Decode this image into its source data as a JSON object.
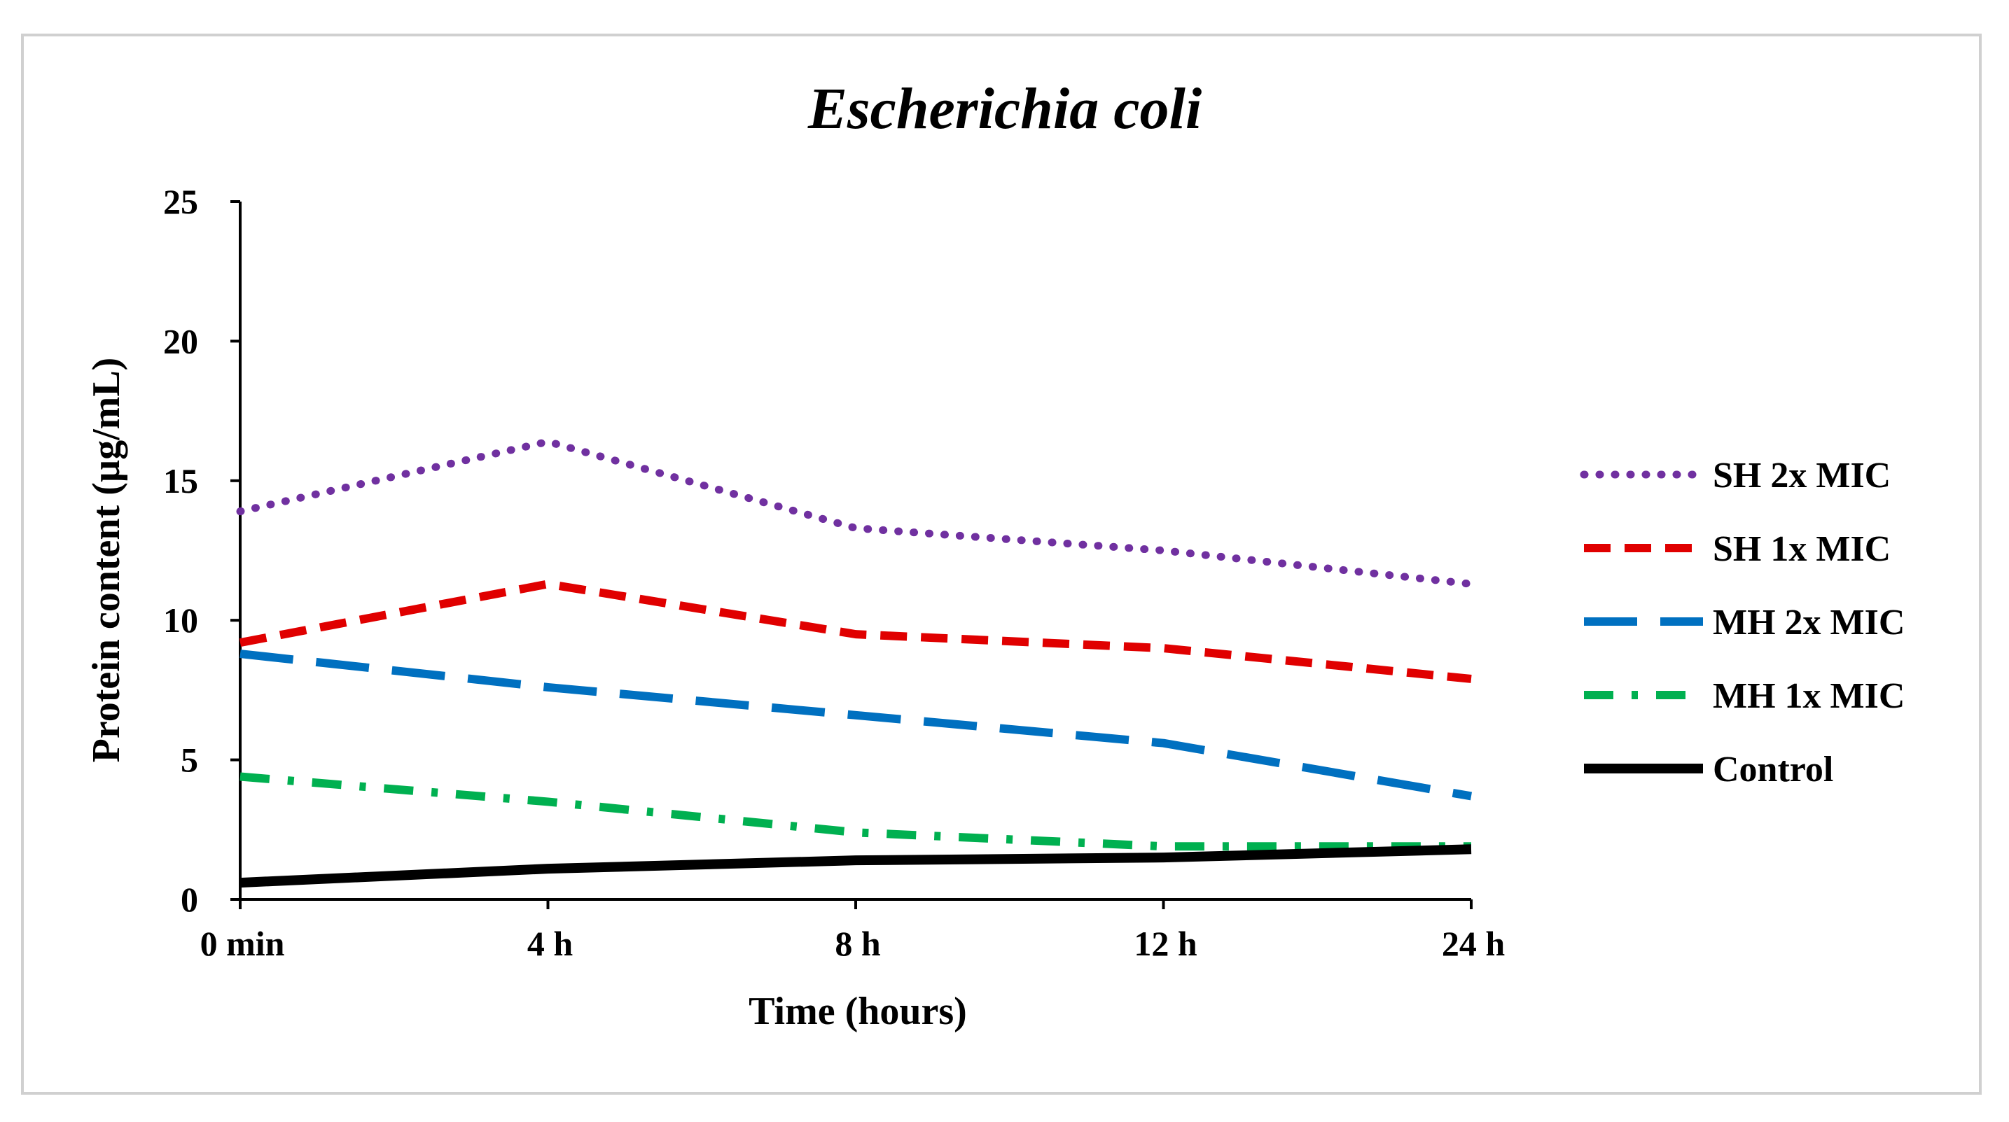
{
  "chart_data": {
    "type": "line",
    "title": "Escherichia coli",
    "xlabel": "Time (hours)",
    "ylabel": "Protein content (µg/mL)",
    "categories": [
      "0 min",
      "4 h",
      "8 h",
      "12 h",
      "24 h"
    ],
    "ylim": [
      0,
      25
    ],
    "yticks": [
      0,
      5,
      10,
      15,
      20,
      25
    ],
    "grid": false,
    "legend_position": "right",
    "series": [
      {
        "name": "SH 2x MIC",
        "values": [
          13.9,
          16.4,
          13.3,
          12.5,
          11.3
        ],
        "color": "#7030a0",
        "style": "dotted"
      },
      {
        "name": "SH 1x MIC",
        "values": [
          9.2,
          11.3,
          9.5,
          9.0,
          7.9
        ],
        "color": "#e00000",
        "style": "dashed"
      },
      {
        "name": "MH 2x MIC",
        "values": [
          8.8,
          7.6,
          6.6,
          5.6,
          3.7
        ],
        "color": "#0070c0",
        "style": "long-dash"
      },
      {
        "name": "MH 1x MIC",
        "values": [
          4.4,
          3.5,
          2.4,
          1.9,
          1.9
        ],
        "color": "#00b050",
        "style": "dash-dot"
      },
      {
        "name": "Control",
        "values": [
          0.6,
          1.1,
          1.4,
          1.5,
          1.8
        ],
        "color": "#000000",
        "style": "solid"
      }
    ]
  }
}
